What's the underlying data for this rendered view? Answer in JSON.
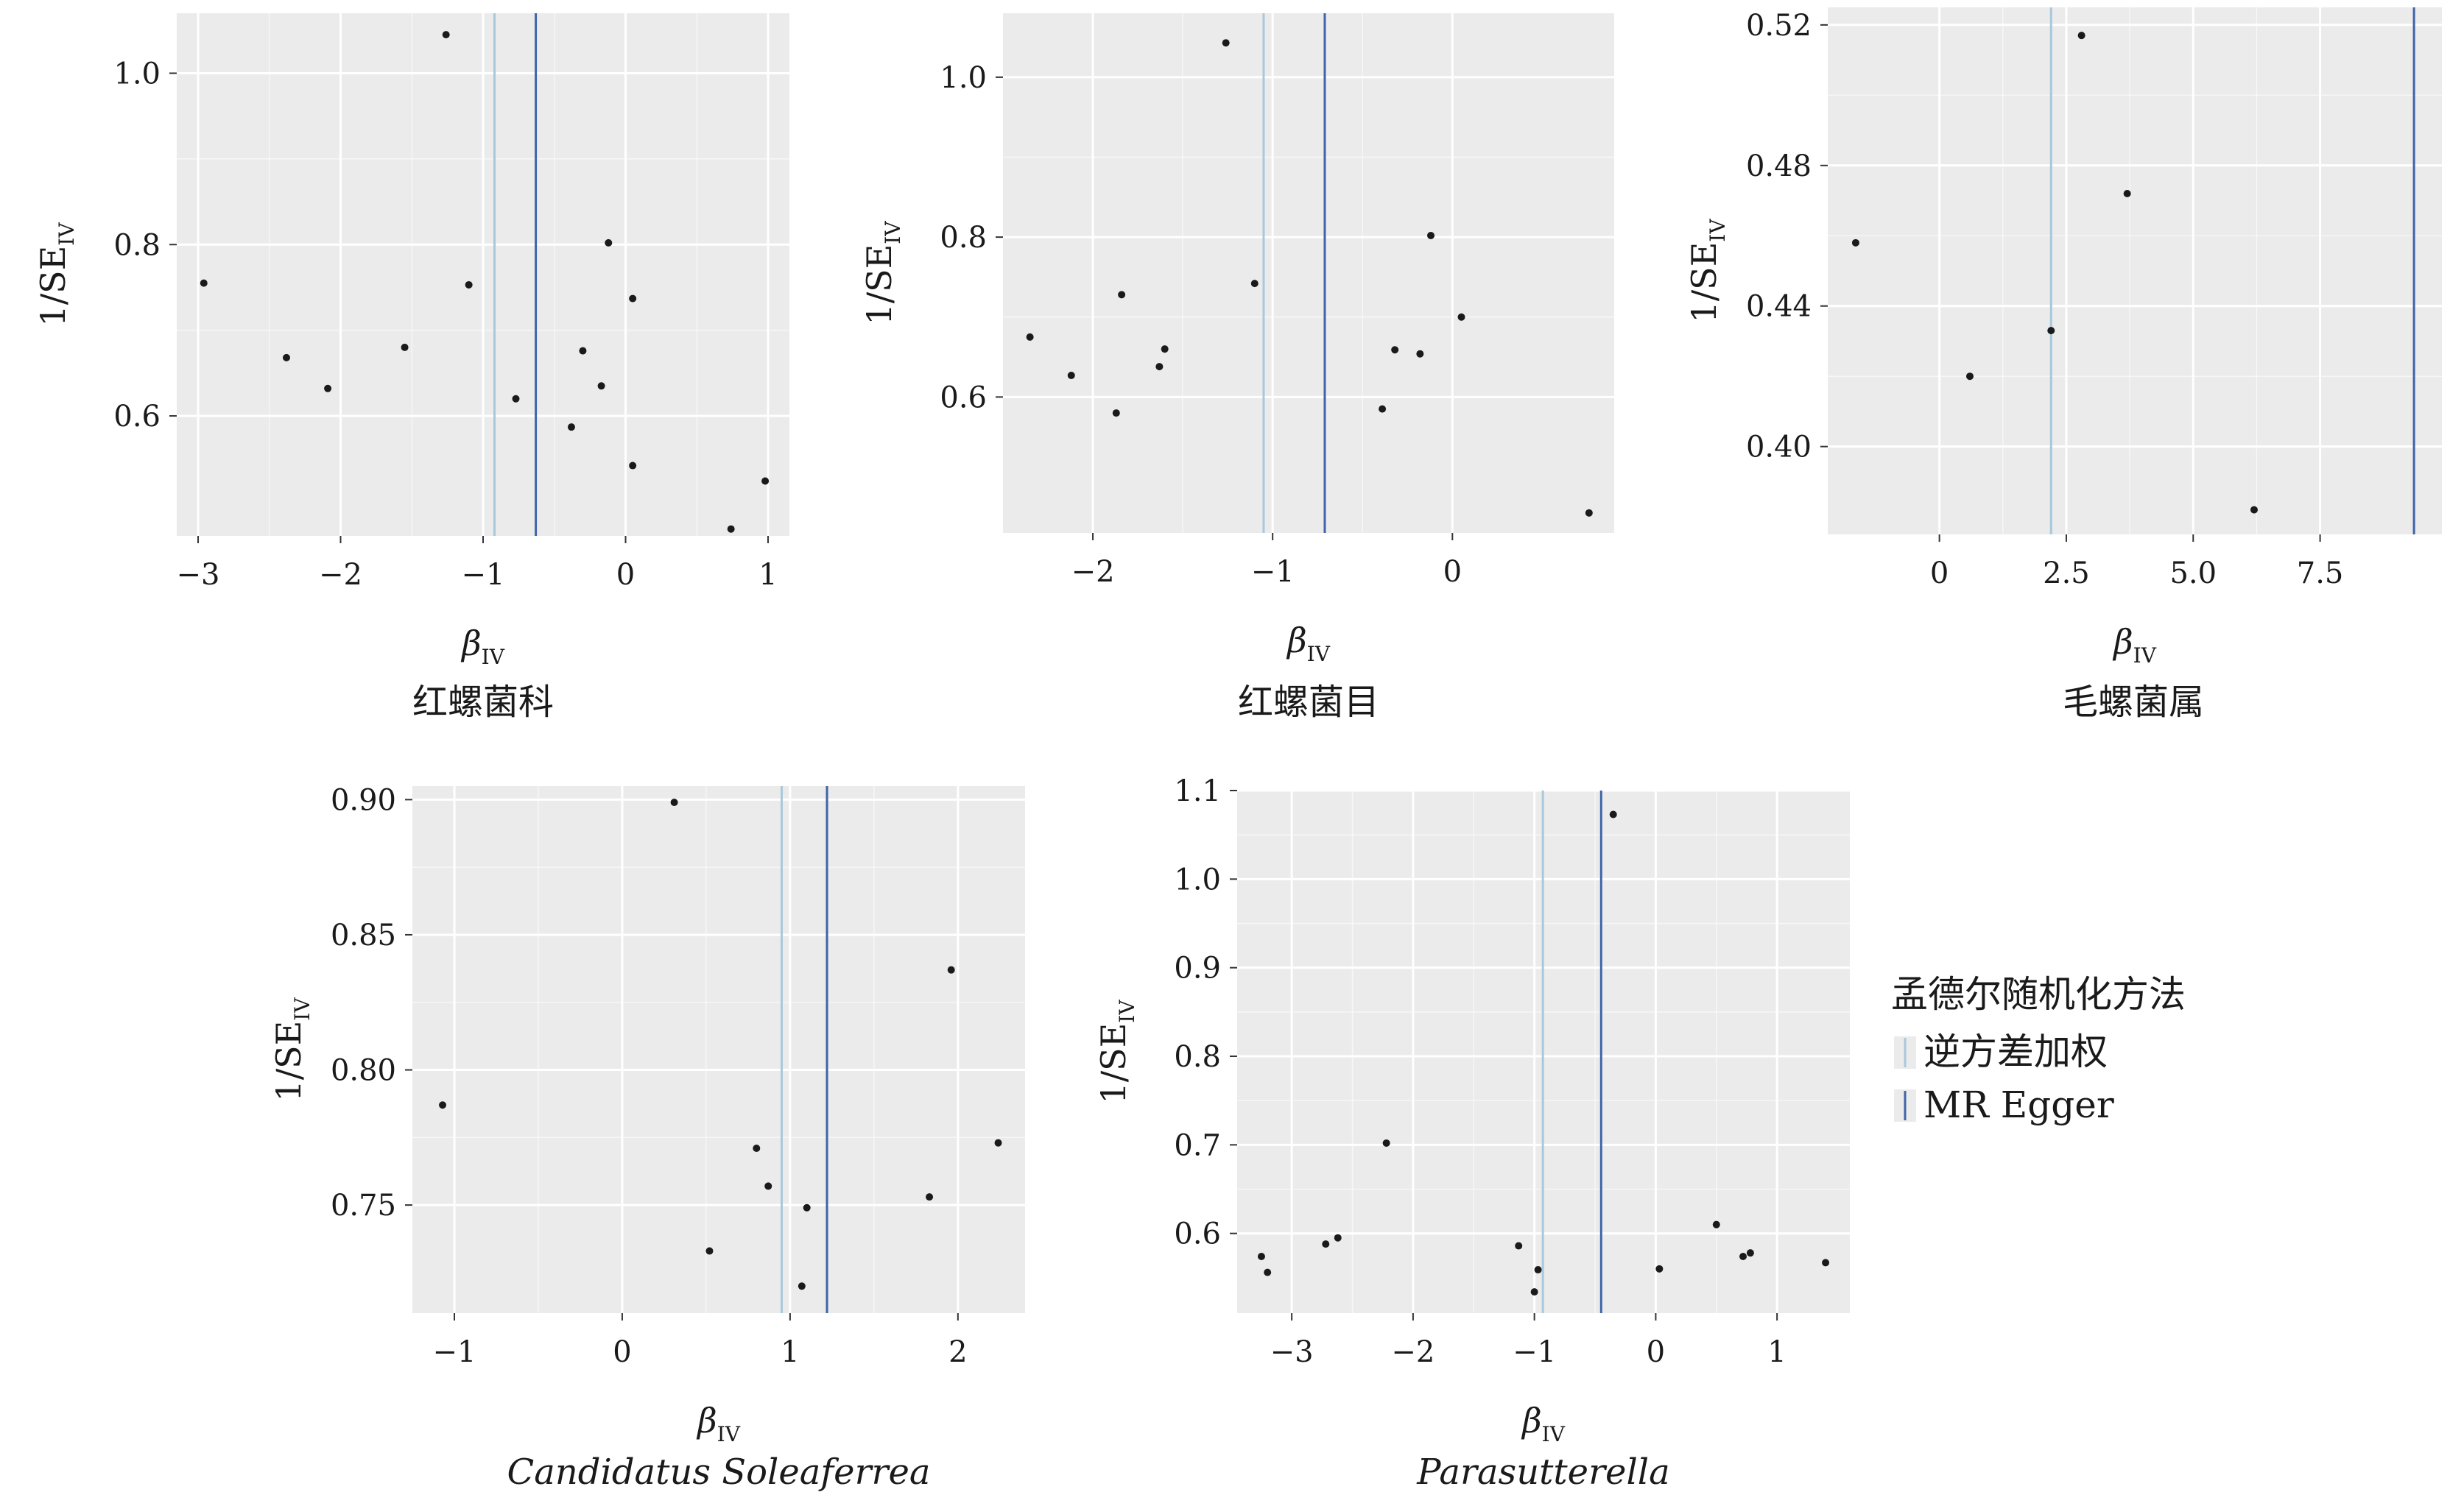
{
  "chart_data": [
    {
      "type": "scatter",
      "title": "红螺菌科",
      "title_italic": false,
      "xlabel": {
        "main": "β",
        "sub": "IV"
      },
      "ylabel": {
        "main": "1/SE",
        "sub": "IV"
      },
      "xlim": [
        -3.15,
        1.15
      ],
      "ylim": [
        0.46,
        1.07
      ],
      "xticks": [
        -3,
        -2,
        -1,
        0,
        1
      ],
      "xtick_labels": [
        "−3",
        "−2",
        "−1",
        "0",
        "1"
      ],
      "yticks": [
        0.6,
        0.8,
        1.0
      ],
      "ytick_labels": [
        "0.6",
        "0.8",
        "1.0"
      ],
      "ivw": -0.92,
      "egger": -0.63,
      "points": [
        {
          "x": -2.96,
          "y": 0.755
        },
        {
          "x": -2.38,
          "y": 0.668
        },
        {
          "x": -2.09,
          "y": 0.632
        },
        {
          "x": -1.55,
          "y": 0.68
        },
        {
          "x": -1.26,
          "y": 1.045
        },
        {
          "x": -1.1,
          "y": 0.753
        },
        {
          "x": -0.77,
          "y": 0.62
        },
        {
          "x": -0.38,
          "y": 0.587
        },
        {
          "x": -0.3,
          "y": 0.676
        },
        {
          "x": -0.17,
          "y": 0.635
        },
        {
          "x": -0.12,
          "y": 0.802
        },
        {
          "x": 0.05,
          "y": 0.737
        },
        {
          "x": 0.05,
          "y": 0.542
        },
        {
          "x": 0.74,
          "y": 0.468
        },
        {
          "x": 0.98,
          "y": 0.524
        }
      ]
    },
    {
      "type": "scatter",
      "title": "红螺菌目",
      "title_italic": false,
      "xlabel": {
        "main": "β",
        "sub": "IV"
      },
      "ylabel": {
        "main": "1/SE",
        "sub": "IV"
      },
      "xlim": [
        -2.5,
        0.9
      ],
      "ylim": [
        0.43,
        1.08
      ],
      "xticks": [
        -2,
        -1,
        0
      ],
      "xtick_labels": [
        "−2",
        "−1",
        "0"
      ],
      "yticks": [
        0.6,
        0.8,
        1.0
      ],
      "ytick_labels": [
        "0.6",
        "0.8",
        "1.0"
      ],
      "ivw": -1.05,
      "egger": -0.71,
      "points": [
        {
          "x": -2.35,
          "y": 0.675
        },
        {
          "x": -2.12,
          "y": 0.627
        },
        {
          "x": -1.87,
          "y": 0.58
        },
        {
          "x": -1.84,
          "y": 0.728
        },
        {
          "x": -1.63,
          "y": 0.638
        },
        {
          "x": -1.6,
          "y": 0.66
        },
        {
          "x": -1.26,
          "y": 1.043
        },
        {
          "x": -1.1,
          "y": 0.742
        },
        {
          "x": -0.39,
          "y": 0.585
        },
        {
          "x": -0.32,
          "y": 0.659
        },
        {
          "x": -0.18,
          "y": 0.654
        },
        {
          "x": -0.12,
          "y": 0.802
        },
        {
          "x": 0.05,
          "y": 0.7
        },
        {
          "x": 0.76,
          "y": 0.455
        }
      ]
    },
    {
      "type": "scatter",
      "title": "毛螺菌属",
      "title_italic": false,
      "xlabel": {
        "main": "β",
        "sub": "IV"
      },
      "ylabel": {
        "main": "1/SE",
        "sub": "IV"
      },
      "xlim": [
        -2.2,
        9.9
      ],
      "ylim": [
        0.375,
        0.525
      ],
      "xticks": [
        0,
        2.5,
        5.0,
        7.5
      ],
      "xtick_labels": [
        "0",
        "2.5",
        "5.0",
        "7.5"
      ],
      "yticks": [
        0.4,
        0.44,
        0.48,
        0.52
      ],
      "ytick_labels": [
        "0.40",
        "0.44",
        "0.48",
        "0.52"
      ],
      "ivw": 2.2,
      "egger": 9.35,
      "points": [
        {
          "x": -1.65,
          "y": 0.458
        },
        {
          "x": 0.6,
          "y": 0.42
        },
        {
          "x": 2.2,
          "y": 0.433
        },
        {
          "x": 2.8,
          "y": 0.517
        },
        {
          "x": 3.7,
          "y": 0.472
        },
        {
          "x": 6.2,
          "y": 0.382
        }
      ]
    },
    {
      "type": "scatter",
      "title": "Candidatus Soleaferrea",
      "title_italic": true,
      "xlabel": {
        "main": "β",
        "sub": "IV"
      },
      "ylabel": {
        "main": "1/SE",
        "sub": "IV"
      },
      "xlim": [
        -1.25,
        2.4
      ],
      "ylim": [
        0.71,
        0.905
      ],
      "xticks": [
        -1,
        0,
        1,
        2
      ],
      "xtick_labels": [
        "−1",
        "0",
        "1",
        "2"
      ],
      "yticks": [
        0.75,
        0.8,
        0.85,
        0.9
      ],
      "ytick_labels": [
        "0.75",
        "0.80",
        "0.85",
        "0.90"
      ],
      "ivw": 0.95,
      "egger": 1.22,
      "points": [
        {
          "x": -1.07,
          "y": 0.787
        },
        {
          "x": 0.31,
          "y": 0.899
        },
        {
          "x": 0.52,
          "y": 0.733
        },
        {
          "x": 0.8,
          "y": 0.771
        },
        {
          "x": 0.87,
          "y": 0.757
        },
        {
          "x": 1.07,
          "y": 0.72
        },
        {
          "x": 1.1,
          "y": 0.749
        },
        {
          "x": 1.83,
          "y": 0.753
        },
        {
          "x": 1.96,
          "y": 0.837
        },
        {
          "x": 2.24,
          "y": 0.773
        }
      ]
    },
    {
      "type": "scatter",
      "title": "Parasutterella",
      "title_italic": true,
      "xlabel": {
        "main": "β",
        "sub": "IV"
      },
      "ylabel": {
        "main": "1/SE",
        "sub": "IV"
      },
      "xlim": [
        -3.45,
        1.6
      ],
      "ylim": [
        0.51,
        1.1
      ],
      "xticks": [
        -3,
        -2,
        -1,
        0,
        1
      ],
      "xtick_labels": [
        "−3",
        "−2",
        "−1",
        "0",
        "1"
      ],
      "yticks": [
        0.6,
        0.7,
        0.8,
        0.9,
        1.0,
        1.1
      ],
      "ytick_labels": [
        "0.6",
        "0.7",
        "0.8",
        "0.9",
        "1.0",
        "1.1"
      ],
      "ivw": -0.93,
      "egger": -0.45,
      "points": [
        {
          "x": -3.25,
          "y": 0.574
        },
        {
          "x": -3.2,
          "y": 0.556
        },
        {
          "x": -2.72,
          "y": 0.588
        },
        {
          "x": -2.62,
          "y": 0.595
        },
        {
          "x": -2.22,
          "y": 0.702
        },
        {
          "x": -1.13,
          "y": 0.586
        },
        {
          "x": -1.0,
          "y": 0.534
        },
        {
          "x": -0.97,
          "y": 0.559
        },
        {
          "x": -0.35,
          "y": 1.073
        },
        {
          "x": 0.03,
          "y": 0.56
        },
        {
          "x": 0.5,
          "y": 0.61
        },
        {
          "x": 0.72,
          "y": 0.574
        },
        {
          "x": 0.78,
          "y": 0.578
        },
        {
          "x": 1.4,
          "y": 0.567
        }
      ]
    }
  ],
  "legend": {
    "title": "孟德尔随机化方法",
    "items": [
      {
        "label": "逆方差加权",
        "color": "#a8c8dc"
      },
      {
        "label": "MR Egger",
        "color": "#3f64a8"
      }
    ]
  },
  "colors": {
    "panel_bg": "#ebebeb",
    "grid": "#ffffff",
    "point": "#1a1a1a",
    "ivw": "#a8c8dc",
    "egger": "#3f64a8"
  }
}
